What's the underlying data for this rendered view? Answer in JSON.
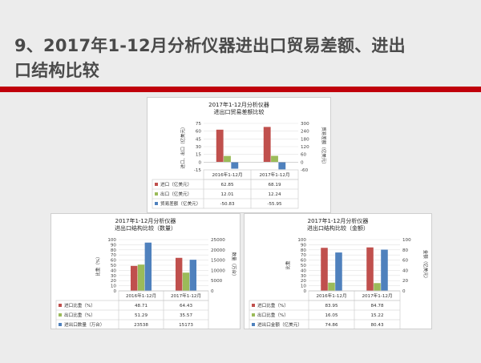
{
  "slide": {
    "title_line1": "9、2017年1-12月分析仪器进出口贸易差额、进出",
    "title_line2": "口结构比较",
    "accent_color": "#c0000b"
  },
  "chart_data": [
    {
      "type": "bar",
      "title": "2017年1-12月分析仪器",
      "subtitle": "进出口贸易差额比较",
      "categories": [
        "2016年1-12月",
        "2017年1-12月"
      ],
      "ylabel": "进口、出口（亿美元）",
      "y2label": "贸易差额（亿美元）",
      "ylim": [
        -15,
        75
      ],
      "yticks": [
        75,
        60,
        45,
        30,
        15,
        0,
        -15
      ],
      "y2lim": [
        -60,
        300
      ],
      "y2ticks": [
        300,
        240,
        180,
        120,
        60,
        0,
        -60
      ],
      "series": [
        {
          "name": "进口（亿美元）",
          "values": [
            62.85,
            68.19
          ],
          "display": [
            "62.85",
            "68.19"
          ],
          "color": "#c0504d",
          "axis": "left"
        },
        {
          "name": "出口（亿美元）",
          "values": [
            12.01,
            12.24
          ],
          "display": [
            "12.01",
            "12.24"
          ],
          "color": "#9bbb59",
          "axis": "left"
        },
        {
          "name": "贸易差额（亿美元）",
          "values": [
            -50.83,
            -55.95
          ],
          "display": [
            "-50.83",
            "-55.95"
          ],
          "color": "#4f81bd",
          "axis": "right"
        }
      ]
    },
    {
      "type": "bar",
      "title": "2017年1-12月分析仪器",
      "subtitle": "进出口结构比较（数量）",
      "categories": [
        "2016年1-12月",
        "2017年1-12月"
      ],
      "ylabel": "比重（%）",
      "y2label": "数量（万台）",
      "ylim": [
        0,
        100
      ],
      "yticks": [
        100,
        90,
        80,
        70,
        60,
        50,
        40,
        30,
        20,
        10,
        0
      ],
      "y2lim": [
        0,
        25000
      ],
      "y2ticks": [
        25000,
        20000,
        15000,
        10000,
        5000,
        0
      ],
      "series": [
        {
          "name": "进口比重（%）",
          "values": [
            48.71,
            64.43
          ],
          "display": [
            "48.71",
            "64.43"
          ],
          "color": "#c0504d",
          "axis": "left"
        },
        {
          "name": "出口比重（%）",
          "values": [
            51.29,
            35.57
          ],
          "display": [
            "51.29",
            "35.57"
          ],
          "color": "#9bbb59",
          "axis": "left"
        },
        {
          "name": "进出口数量（万台）",
          "values": [
            23538,
            15173
          ],
          "display": [
            "23538",
            "15173"
          ],
          "color": "#4f81bd",
          "axis": "right"
        }
      ]
    },
    {
      "type": "bar",
      "title": "2017年1-12月分析仪器",
      "subtitle": "进出口结构比较（金额）",
      "categories": [
        "2016年1-12月",
        "2017年1-12月"
      ],
      "ylabel": "比重",
      "y2label": "金额（亿美元）",
      "ylim": [
        0,
        100
      ],
      "yticks": [
        100,
        90,
        80,
        70,
        60,
        50,
        40,
        30,
        20,
        10,
        0
      ],
      "y2lim": [
        0,
        100
      ],
      "y2ticks": [
        100,
        80,
        60,
        40,
        20,
        0
      ],
      "series": [
        {
          "name": "进口比重（%）",
          "values": [
            83.95,
            84.78
          ],
          "display": [
            "83.95",
            "84.78"
          ],
          "color": "#c0504d",
          "axis": "left"
        },
        {
          "name": "出口比重（%）",
          "values": [
            16.05,
            15.22
          ],
          "display": [
            "16.05",
            "15.22"
          ],
          "color": "#9bbb59",
          "axis": "left"
        },
        {
          "name": "进出口金额（亿美元）",
          "values": [
            74.86,
            80.43
          ],
          "display": [
            "74.86",
            "80.43"
          ],
          "color": "#4f81bd",
          "axis": "right"
        }
      ]
    }
  ]
}
